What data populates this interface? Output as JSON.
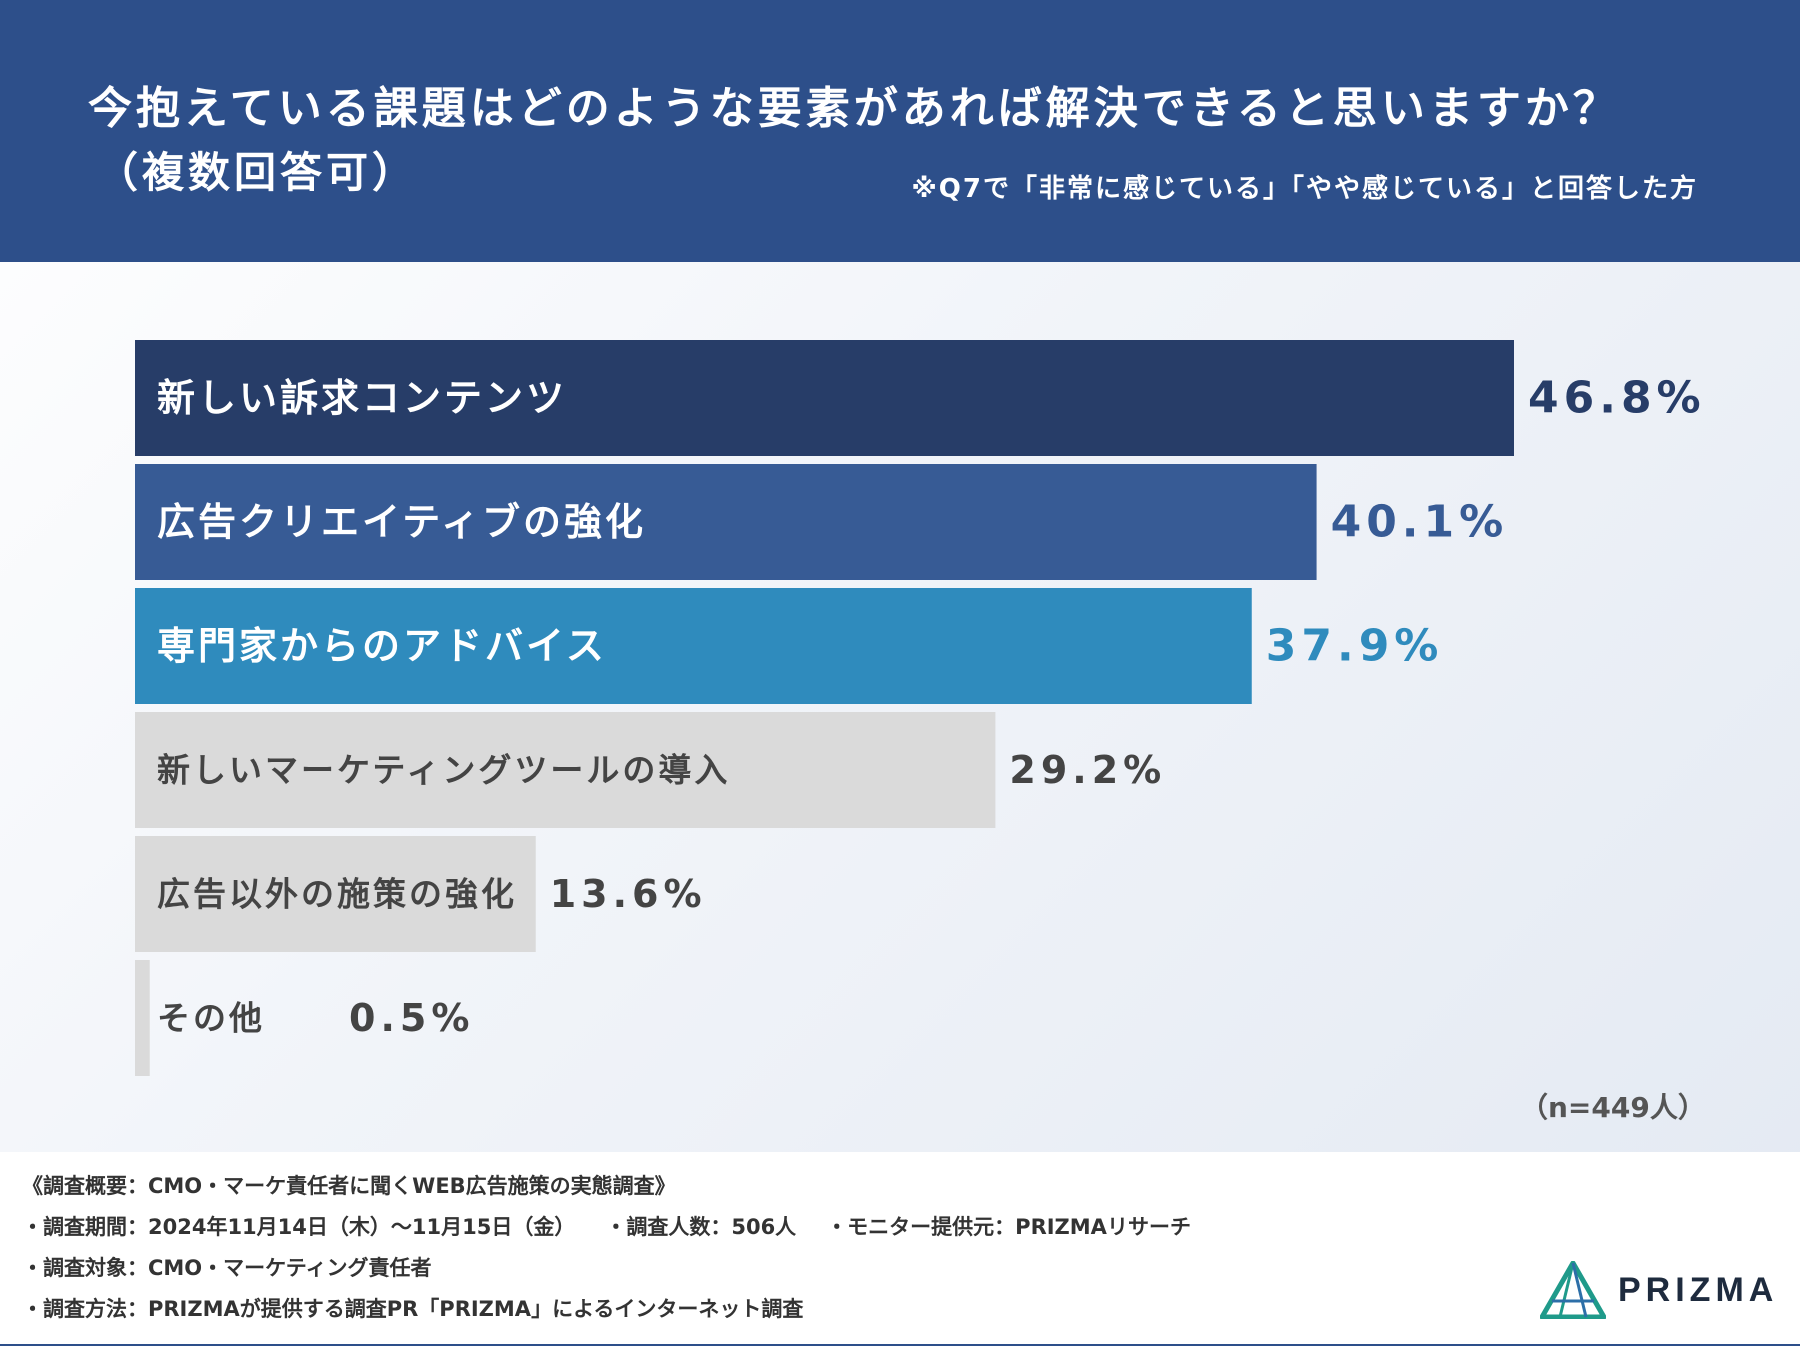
{
  "header": {
    "title": "今抱えている課題はどのような要素があれば解決できると思いますか？",
    "subtitle": "（複数回答可）",
    "note": "※Q7で「非常に感じている」「やや感じている」と回答した方"
  },
  "chart_data": {
    "type": "bar",
    "orientation": "horizontal",
    "unit": "%",
    "categories": [
      "新しい訴求コンテンツ",
      "広告クリエイティブの強化",
      "専門家からのアドバイス",
      "新しいマーケティングツールの導入",
      "広告以外の施策の強化",
      "その他"
    ],
    "values": [
      46.8,
      40.1,
      37.9,
      29.2,
      13.6,
      0.5
    ],
    "value_labels": [
      "46.8%",
      "40.1%",
      "37.9%",
      "29.2%",
      "13.6%",
      "0.5%"
    ],
    "bar_colors": [
      "#273d68",
      "#375b95",
      "#2f8bbd",
      "#dadada",
      "#dadada",
      "#dadada"
    ],
    "text_colors": [
      "#ffffff",
      "#ffffff",
      "#ffffff",
      "#444444",
      "#444444",
      "#444444"
    ],
    "value_colors": [
      "#273d68",
      "#375b95",
      "#2f8bbd",
      "#444444",
      "#444444",
      "#444444"
    ],
    "xlim": [
      0,
      46.8
    ],
    "grid": false,
    "legend": "none",
    "sample_note": "（n=449人）"
  },
  "footer": {
    "summary": "《調査概要：CMO・マーケ責任者に聞くWEB広告施策の実態調査》",
    "period": "・調査期間：2024年11月14日（木）～11月15日（金）",
    "respondents": "・調査人数：506人",
    "provider": "・モニター提供元：PRIZMAリサーチ",
    "target": "・調査対象：CMO・マーケティング責任者",
    "method": "・調査方法：PRIZMAが提供する調査PR「PRIZMA」によるインターネット調査",
    "logo_text": "PRIZMA"
  },
  "colors": {
    "header_bg": "#2d4f8a",
    "accent": "#2f8bbd"
  }
}
